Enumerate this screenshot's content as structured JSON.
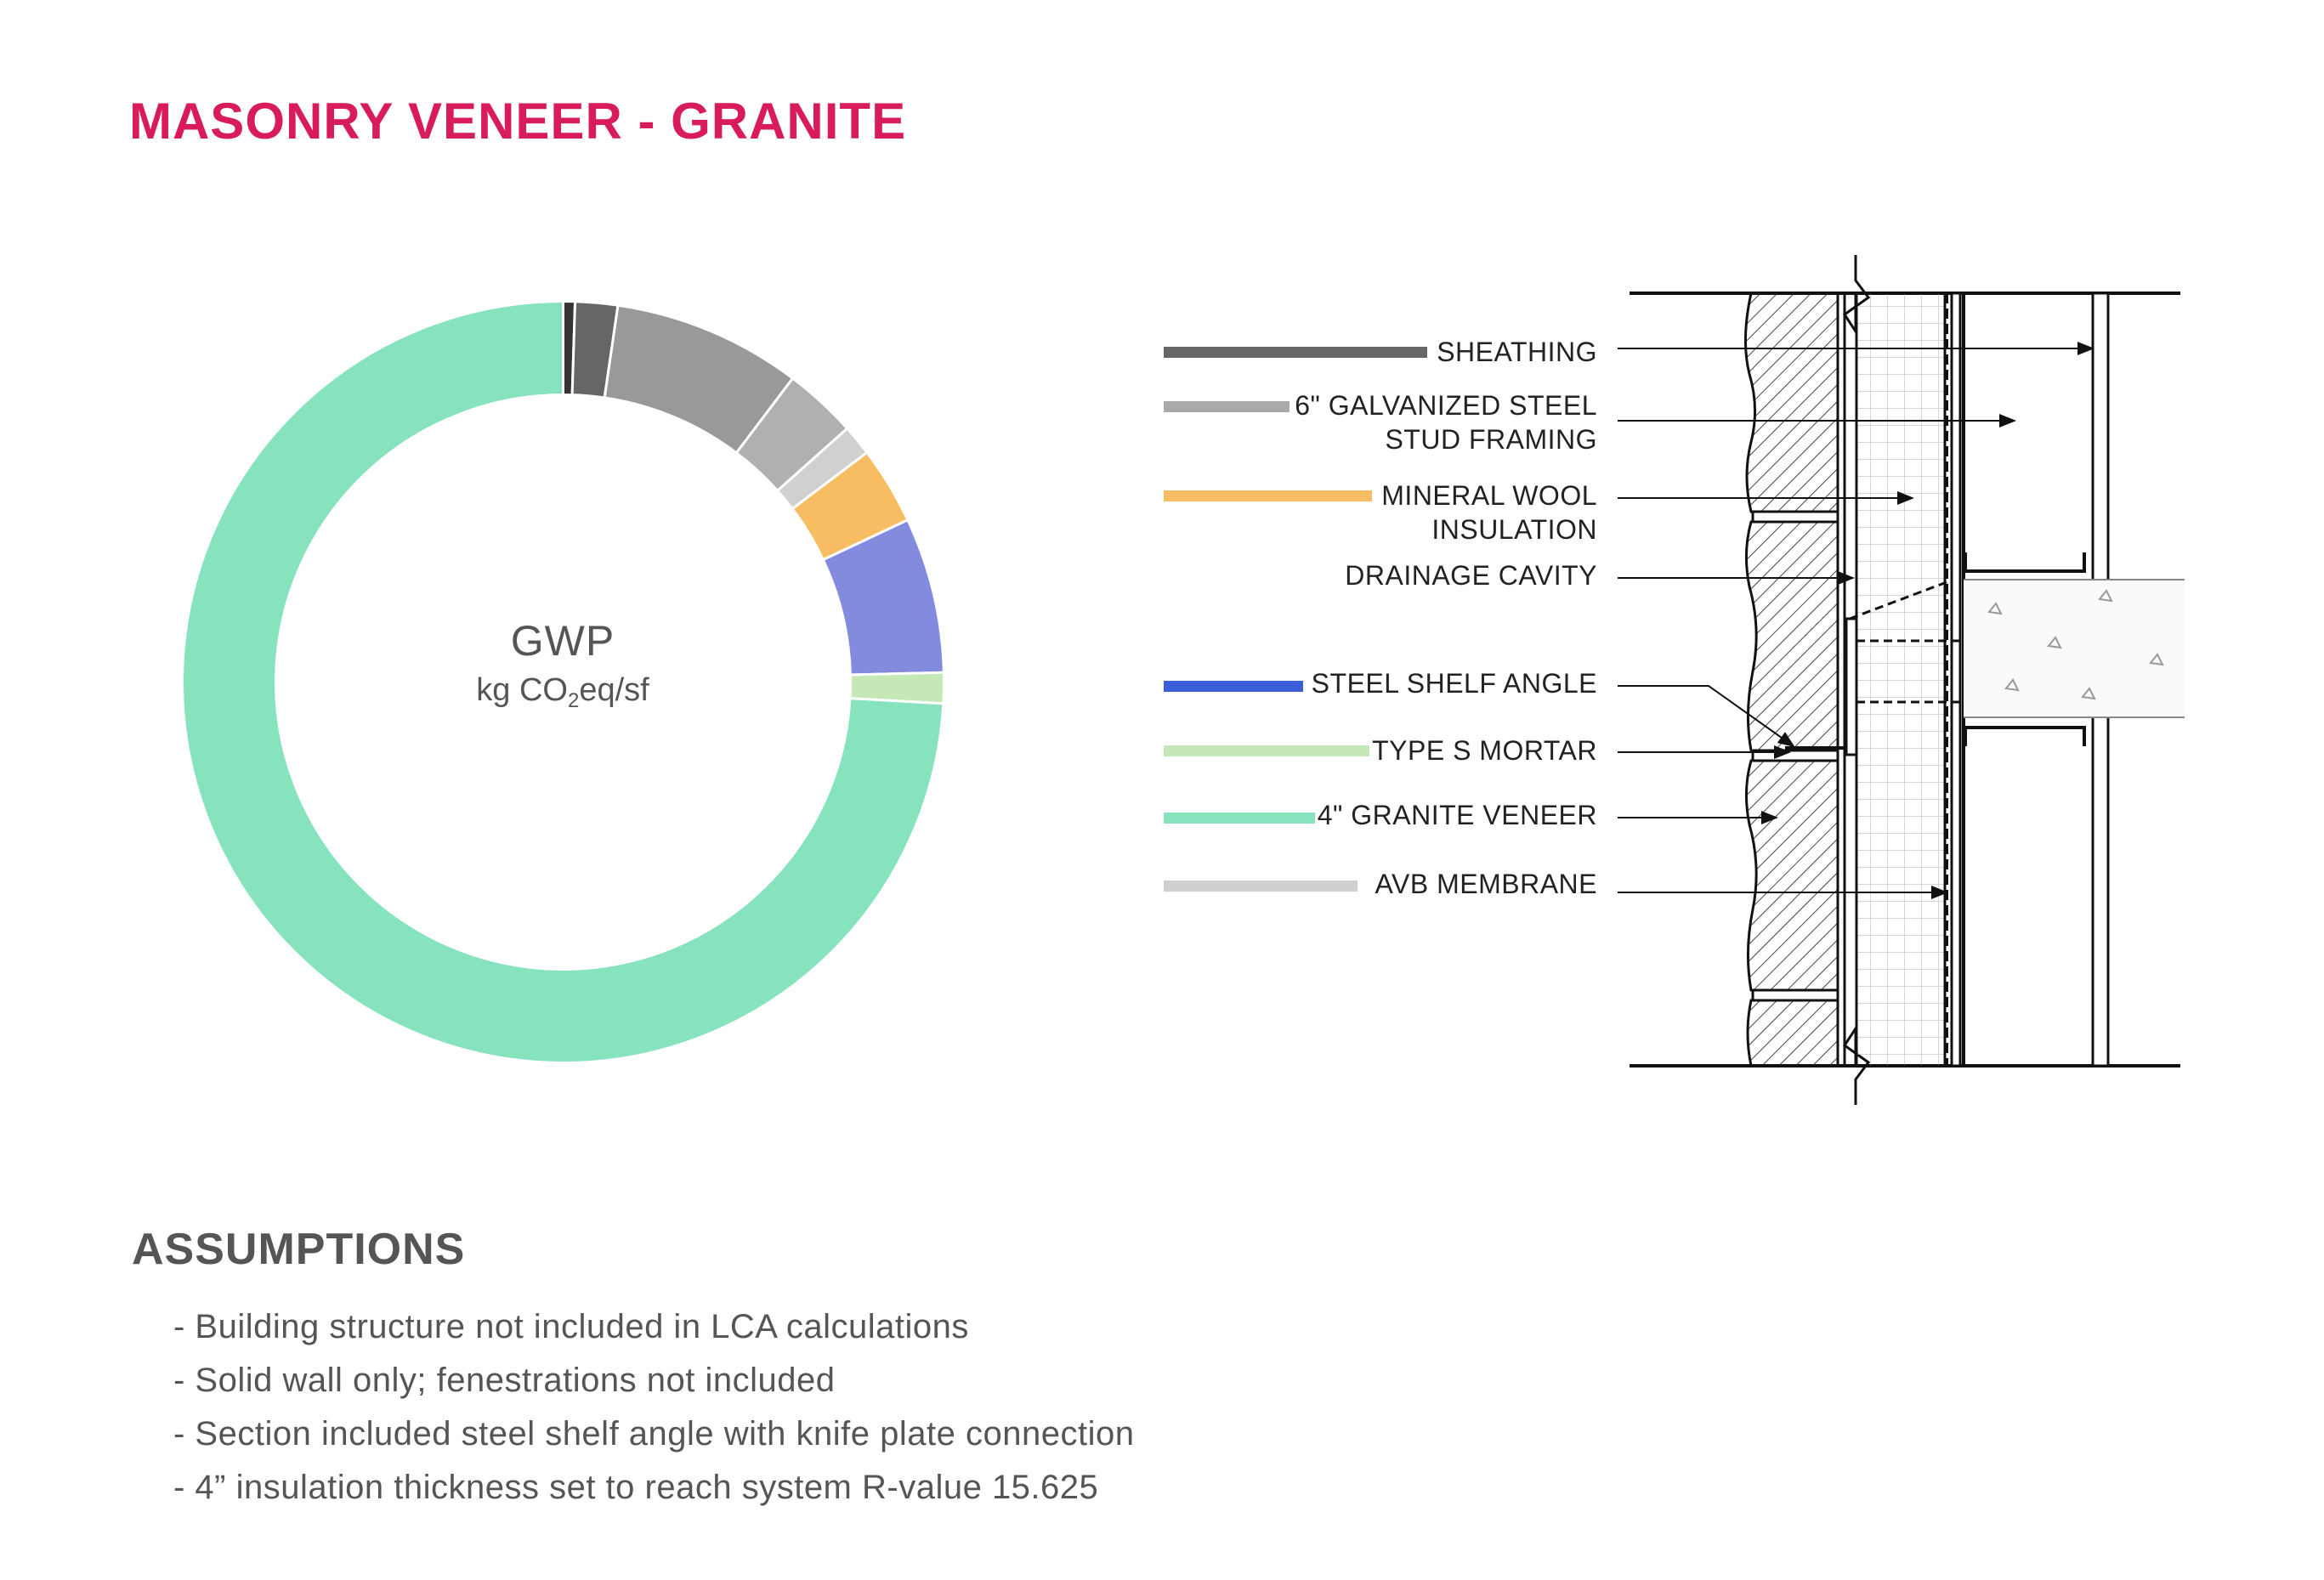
{
  "title": "MASONRY VENEER - GRANITE",
  "chart_data": {
    "type": "pie",
    "variant": "donut",
    "center_label": {
      "main": "GWP",
      "unit_prefix": "kg CO",
      "unit_sub": "2",
      "unit_suffix": "eq/sf"
    },
    "slices": [
      {
        "color": "#333333",
        "value": 0.5
      },
      {
        "color": "#666666",
        "value": 1.8
      },
      {
        "color": "#999999",
        "value": 8.0
      },
      {
        "color": "#b0b0b0",
        "value": 3.1
      },
      {
        "color": "#d0d0d0",
        "value": 1.3
      },
      {
        "color": "#f8bd62",
        "value": 3.3
      },
      {
        "color": "#838bdf",
        "value": 6.6
      },
      {
        "color": "#c5e9b6",
        "value": 1.3
      },
      {
        "color": "#87e2be",
        "value": 74.1
      }
    ]
  },
  "legend": [
    {
      "lines": [
        "SHEATHING"
      ],
      "color": "#666666"
    },
    {
      "lines": [
        "6\" GALVANIZED STEEL",
        "STUD FRAMING"
      ],
      "color": "#aaaaaa"
    },
    {
      "lines": [
        "MINERAL WOOL",
        "INSULATION"
      ],
      "color": "#f8bd62"
    },
    {
      "lines": [
        "DRAINAGE CAVITY"
      ],
      "color": ""
    },
    {
      "lines": [
        "STEEL SHELF ANGLE"
      ],
      "color": "#3c5fd8"
    },
    {
      "lines": [
        "TYPE S MORTAR"
      ],
      "color": "#c5e9b6"
    },
    {
      "lines": [
        "4\" GRANITE VENEER"
      ],
      "color": "#87e2be"
    },
    {
      "lines": [
        "AVB MEMBRANE"
      ],
      "color": "#cfcfcf"
    }
  ],
  "assumptions": {
    "title": "ASSUMPTIONS",
    "items": [
      "- Building structure not included in LCA calculations",
      "- Solid wall only; fenestrations not included",
      "- Section included steel shelf angle with knife plate connection",
      "- 4” insulation thickness set to reach system R-value 15.625"
    ]
  }
}
